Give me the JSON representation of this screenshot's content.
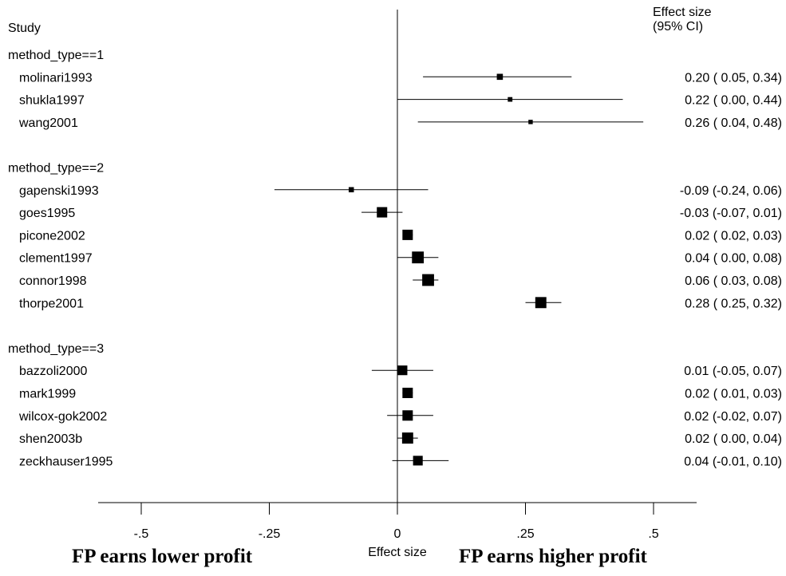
{
  "chart_data": {
    "type": "forest",
    "study_header": "Study",
    "effect_header_line1": "Effect size",
    "effect_header_line2": "(95% CI)",
    "xlabel": "Effect size",
    "left_annotation": "FP earns lower profit",
    "right_annotation": "FP earns higher profit",
    "xlim": [
      -0.58,
      0.58
    ],
    "x_ticks": [
      -0.5,
      -0.25,
      0,
      0.25,
      0.5
    ],
    "x_tick_labels": [
      "-.5",
      "-.25",
      "0",
      ".25",
      ".5"
    ],
    "groups": [
      {
        "label": "method_type==1",
        "studies": [
          {
            "name": "molinari1993",
            "es": 0.2,
            "lo": 0.05,
            "hi": 0.34,
            "ci_text": "0.20 ( 0.05, 0.34)",
            "weight": 2
          },
          {
            "name": "shukla1997",
            "es": 0.22,
            "lo": 0.0,
            "hi": 0.44,
            "ci_text": "0.22 ( 0.00, 0.44)",
            "weight": 1
          },
          {
            "name": "wang2001",
            "es": 0.26,
            "lo": 0.04,
            "hi": 0.48,
            "ci_text": "0.26 ( 0.04, 0.48)",
            "weight": 0.8
          }
        ]
      },
      {
        "label": "method_type==2",
        "studies": [
          {
            "name": "gapenski1993",
            "es": -0.09,
            "lo": -0.24,
            "hi": 0.06,
            "ci_text": "-0.09 (-0.24, 0.06)",
            "weight": 1.4
          },
          {
            "name": "goes1995",
            "es": -0.03,
            "lo": -0.07,
            "hi": 0.01,
            "ci_text": "-0.03 (-0.07, 0.01)",
            "weight": 5
          },
          {
            "name": "picone2002",
            "es": 0.02,
            "lo": 0.02,
            "hi": 0.03,
            "ci_text": "0.02 ( 0.02, 0.03)",
            "weight": 5
          },
          {
            "name": "clement1997",
            "es": 0.04,
            "lo": 0.0,
            "hi": 0.08,
            "ci_text": "0.04 ( 0.00, 0.08)",
            "weight": 6
          },
          {
            "name": "connor1998",
            "es": 0.06,
            "lo": 0.03,
            "hi": 0.08,
            "ci_text": "0.06 ( 0.03, 0.08)",
            "weight": 6
          },
          {
            "name": "thorpe2001",
            "es": 0.28,
            "lo": 0.25,
            "hi": 0.32,
            "ci_text": "0.28 ( 0.25, 0.32)",
            "weight": 5.5
          }
        ]
      },
      {
        "label": "method_type==3",
        "studies": [
          {
            "name": "bazzoli2000",
            "es": 0.01,
            "lo": -0.05,
            "hi": 0.07,
            "ci_text": "0.01 (-0.05, 0.07)",
            "weight": 4.5
          },
          {
            "name": "mark1999",
            "es": 0.02,
            "lo": 0.01,
            "hi": 0.03,
            "ci_text": "0.02 ( 0.01, 0.03)",
            "weight": 5
          },
          {
            "name": "wilcox-gok2002",
            "es": 0.02,
            "lo": -0.02,
            "hi": 0.07,
            "ci_text": "0.02 (-0.02, 0.07)",
            "weight": 5
          },
          {
            "name": "shen2003b",
            "es": 0.02,
            "lo": 0.0,
            "hi": 0.04,
            "ci_text": "0.02 ( 0.00, 0.04)",
            "weight": 5.5
          },
          {
            "name": "zeckhauser1995",
            "es": 0.04,
            "lo": -0.01,
            "hi": 0.1,
            "ci_text": "0.04 (-0.01, 0.10)",
            "weight": 4.5
          }
        ]
      }
    ]
  }
}
